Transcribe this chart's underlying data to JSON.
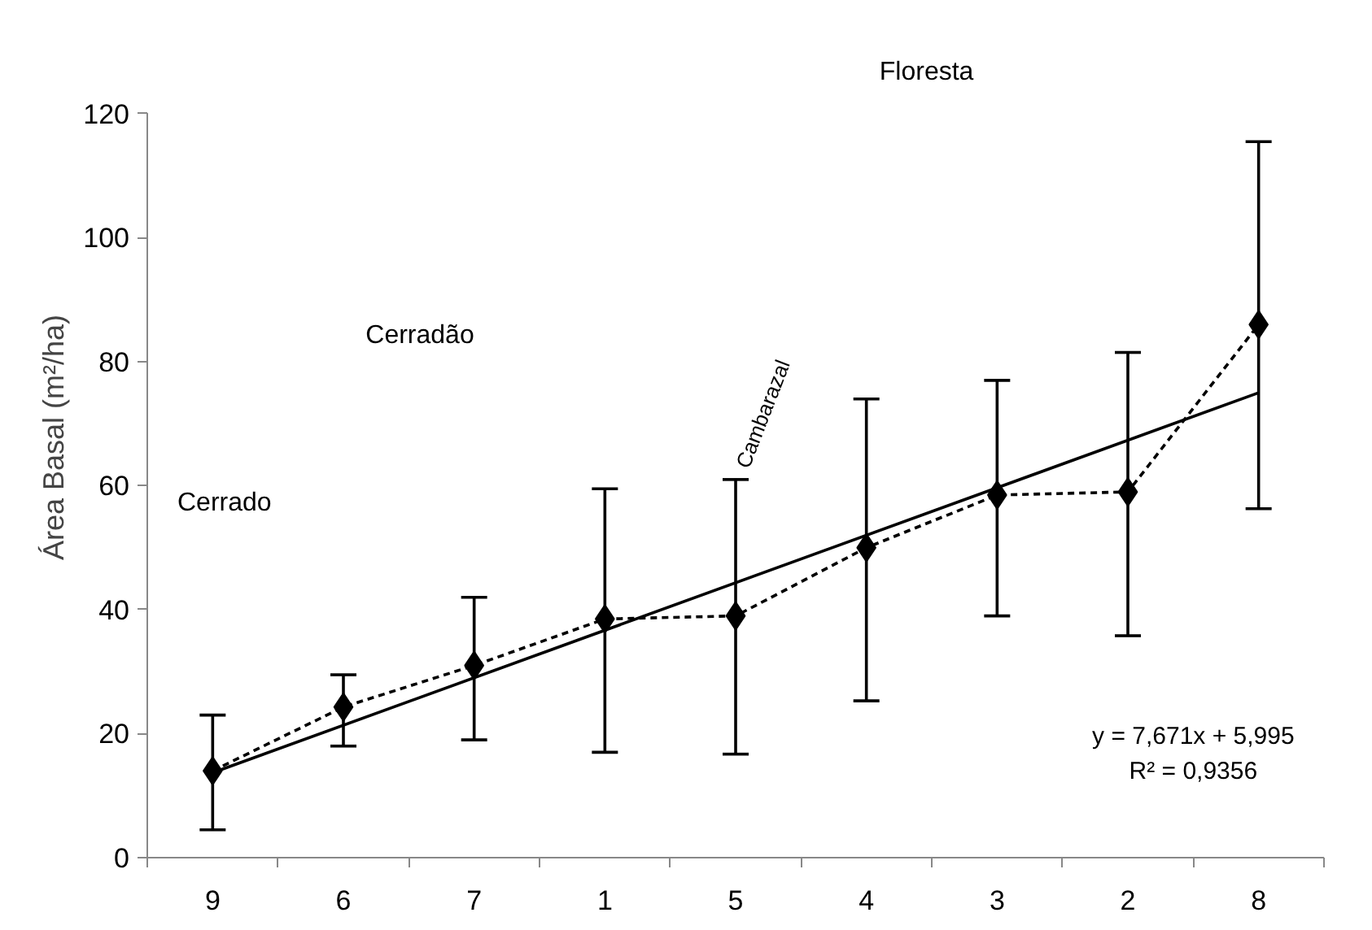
{
  "chart_data": {
    "type": "line",
    "ylabel": "Área Basal (m²/ha)",
    "categories": [
      "9",
      "6",
      "7",
      "1",
      "5",
      "4",
      "3",
      "2",
      "8"
    ],
    "series": [
      {
        "color": "#000000",
        "marker": "diamond",
        "line_style": "dashed",
        "values": [
          14,
          24.3,
          31,
          38.5,
          39,
          50,
          58.5,
          59,
          86
        ],
        "errors": [
          [
            4.5,
            23
          ],
          [
            18,
            29.5
          ],
          [
            19,
            42
          ],
          [
            17,
            59.5
          ],
          [
            16.7,
            61
          ],
          [
            25.3,
            74
          ],
          [
            39,
            77
          ],
          [
            35.8,
            81.5
          ],
          [
            56.3,
            115.5
          ]
        ]
      },
      {
        "color": "#000000",
        "marker": "none",
        "line_style": "solid",
        "x": [
          "9",
          "8"
        ],
        "values": [
          13.7,
          75.0
        ]
      }
    ],
    "ylim": [
      0,
      120
    ],
    "yticks": [
      0,
      20,
      40,
      60,
      80,
      100,
      120
    ],
    "grid": false,
    "annotations": [
      "Cerrado",
      "Cerradão",
      "Cambarazal",
      "Floresta",
      "y = 7,671x + 5,995\nR² = 0,9356"
    ]
  }
}
